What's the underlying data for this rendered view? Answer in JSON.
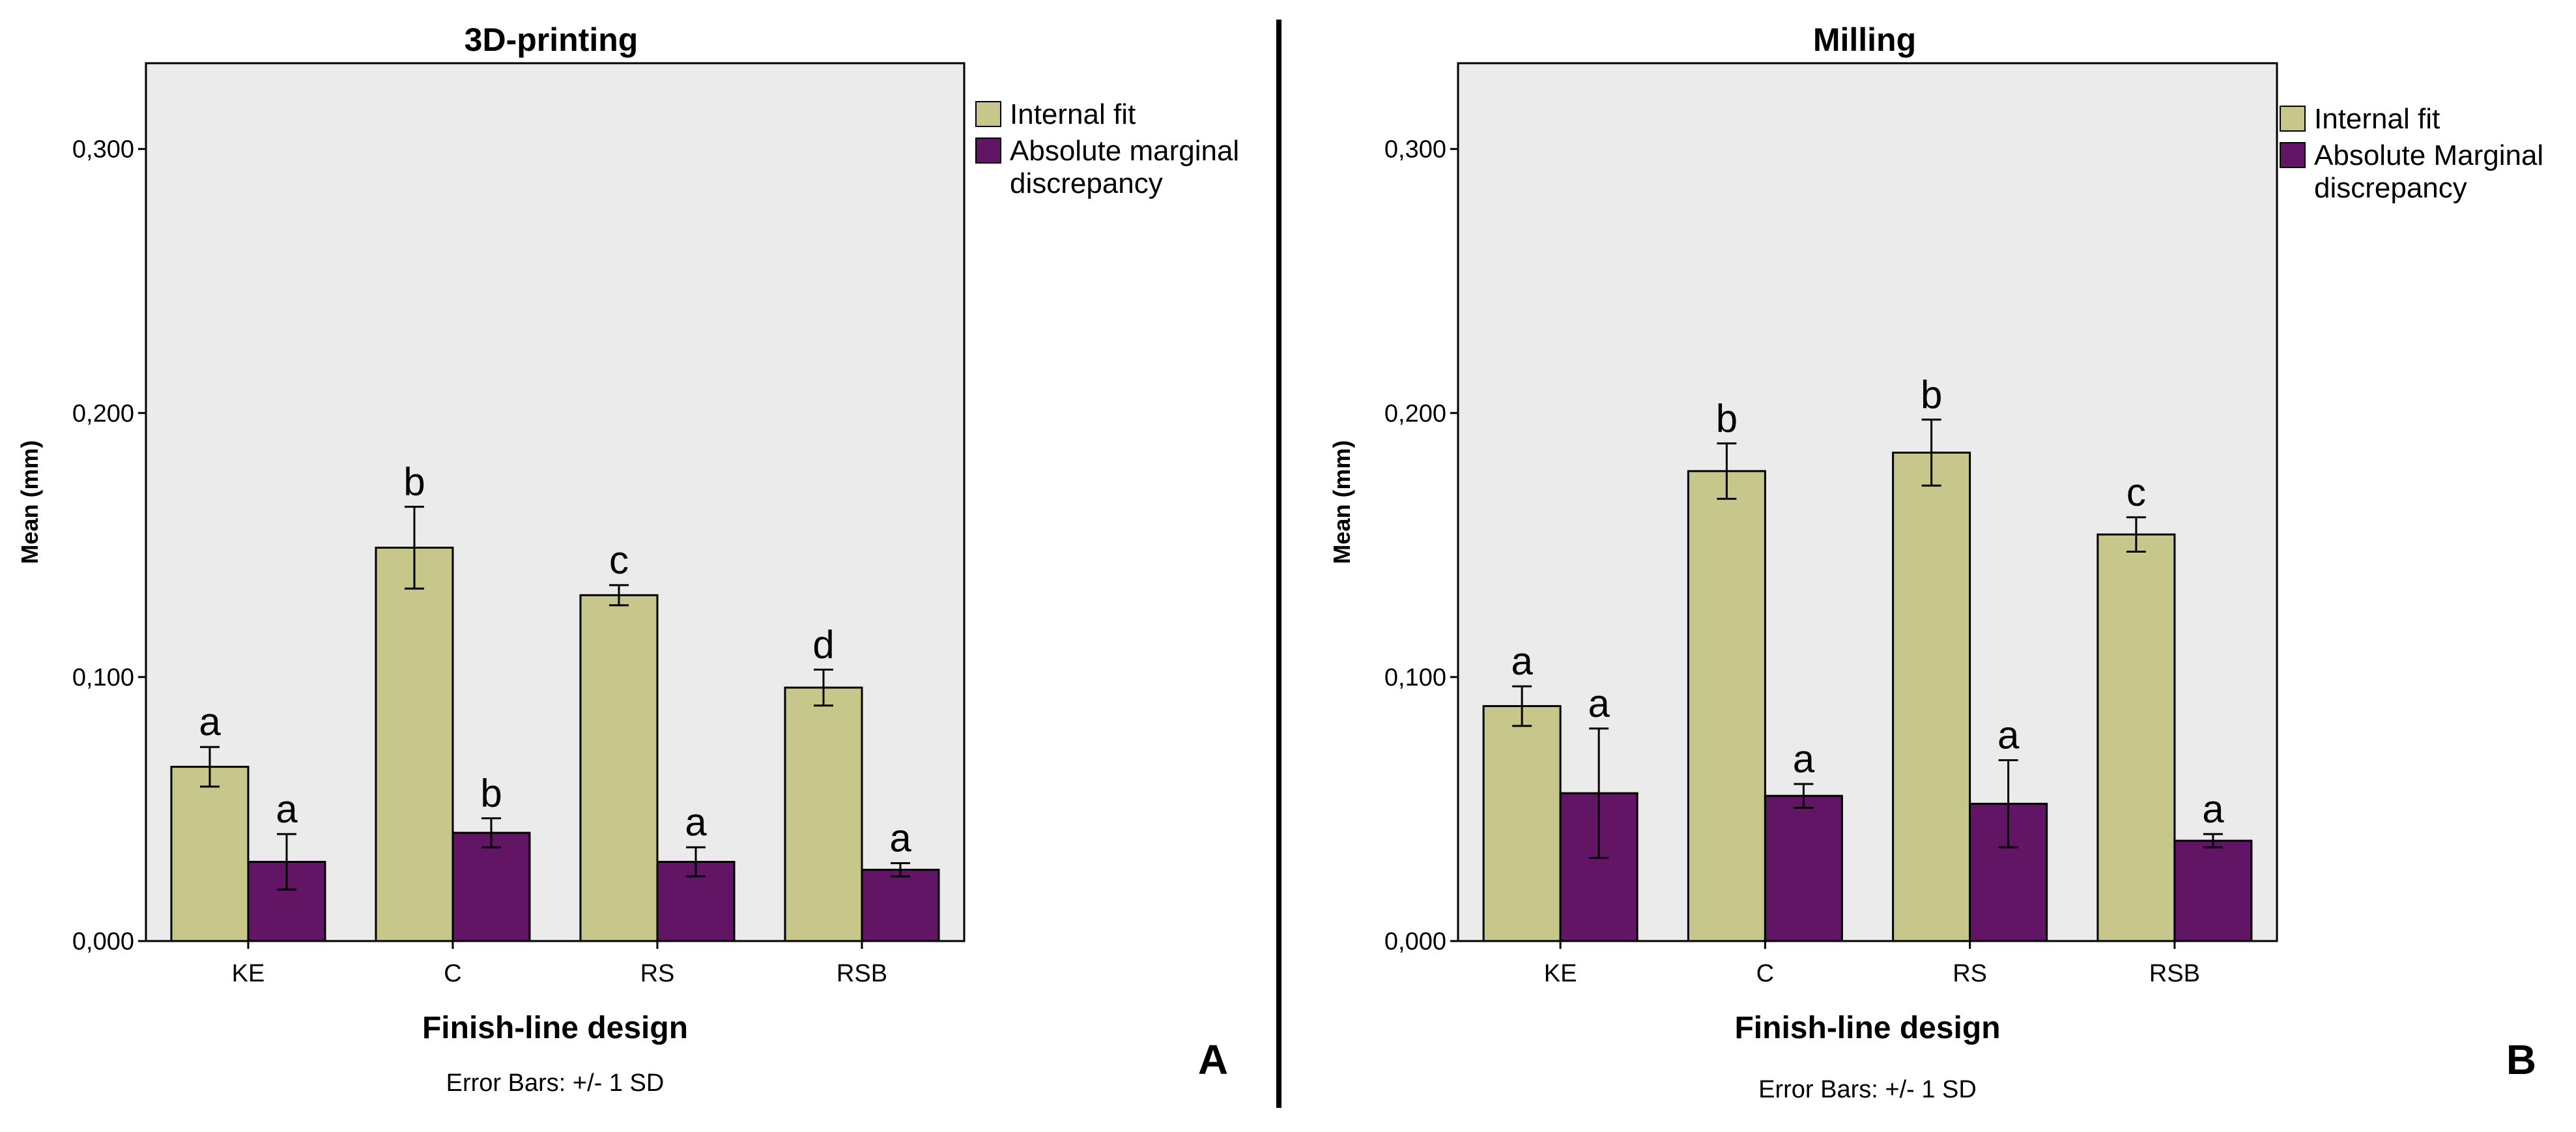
{
  "chart_data": [
    {
      "type": "bar",
      "panel_letter": "A",
      "title": "3D-printing",
      "xlabel": "Finish-line design",
      "ylabel": "Mean (mm)",
      "ylim": [
        0,
        0.3325
      ],
      "yticks": [
        0,
        0.1,
        0.2,
        0.3
      ],
      "ytick_labels": [
        "0,000",
        "0,100",
        "0,200",
        "0,300"
      ],
      "categories": [
        "KE",
        "C",
        "RS",
        "RSB"
      ],
      "legend_position": "right",
      "series": [
        {
          "name": "Internal fit",
          "color": "#c8c78b",
          "values": [
            0.066,
            0.149,
            0.131,
            0.096
          ],
          "sd": [
            0.0075,
            0.0155,
            0.0038,
            0.0068
          ],
          "letters": [
            "a",
            "b",
            "c",
            "d"
          ]
        },
        {
          "name": "Absolute marginal discrepancy",
          "legend_lines": [
            "Absolute marginal",
            "discrepancy"
          ],
          "color": "#621565",
          "values": [
            0.03,
            0.041,
            0.03,
            0.027
          ],
          "sd": [
            0.0105,
            0.0055,
            0.0055,
            0.0025
          ],
          "letters": [
            "a",
            "b",
            "a",
            "a"
          ]
        }
      ],
      "footnote": "Error Bars: +/- 1 SD"
    },
    {
      "type": "bar",
      "panel_letter": "B",
      "title": "Milling",
      "xlabel": "Finish-line design",
      "ylabel": "Mean (mm)",
      "ylim": [
        0,
        0.3325
      ],
      "yticks": [
        0,
        0.1,
        0.2,
        0.3
      ],
      "ytick_labels": [
        "0,000",
        "0,100",
        "0,200",
        "0,300"
      ],
      "categories": [
        "KE",
        "C",
        "RS",
        "RSB"
      ],
      "legend_position": "right",
      "series": [
        {
          "name": "Internal fit",
          "color": "#c8c78b",
          "values": [
            0.089,
            0.178,
            0.185,
            0.154
          ],
          "sd": [
            0.0075,
            0.0105,
            0.0125,
            0.0065
          ],
          "letters": [
            "a",
            "b",
            "b",
            "c"
          ]
        },
        {
          "name": "Absolute Marginal discrepancy",
          "legend_lines": [
            "Absolute Marginal",
            "discrepancy"
          ],
          "color": "#621565",
          "values": [
            0.056,
            0.055,
            0.052,
            0.038
          ],
          "sd": [
            0.0245,
            0.0045,
            0.0165,
            0.0025
          ],
          "letters": [
            "a",
            "a",
            "a",
            "a"
          ]
        }
      ],
      "footnote": "Error Bars: +/- 1 SD"
    }
  ]
}
